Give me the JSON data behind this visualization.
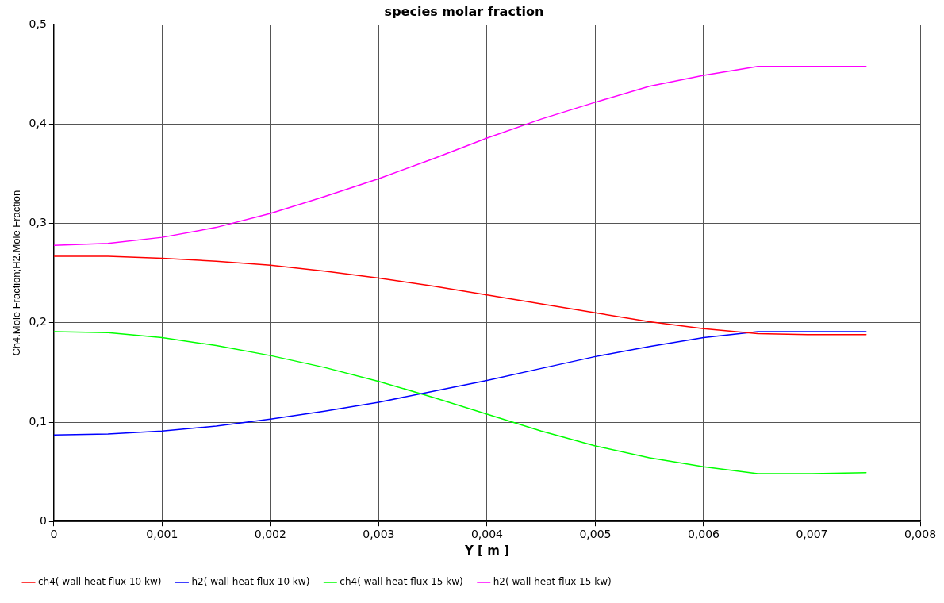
{
  "chart_data": {
    "type": "line",
    "title": "species molar fraction",
    "xlabel": "Y [ m ]",
    "ylabel": "Ch4.Mole Fraction;H2.Mole Fraction",
    "x": [
      0,
      0.0005,
      0.001,
      0.0015,
      0.002,
      0.0025,
      0.003,
      0.0035,
      0.004,
      0.0045,
      0.005,
      0.0055,
      0.006,
      0.0065,
      0.007,
      0.0075
    ],
    "series": [
      {
        "name": "ch4( wall heat flux 10 kw)",
        "color": "#ff0000",
        "values": [
          0.267,
          0.267,
          0.265,
          0.262,
          0.258,
          0.252,
          0.245,
          0.237,
          0.228,
          0.219,
          0.21,
          0.201,
          0.194,
          0.189,
          0.188,
          0.188
        ]
      },
      {
        "name": "h2( wall heat flux 10 kw)",
        "color": "#0000ff",
        "values": [
          0.087,
          0.088,
          0.091,
          0.096,
          0.103,
          0.111,
          0.12,
          0.131,
          0.142,
          0.154,
          0.166,
          0.176,
          0.185,
          0.191,
          0.191,
          0.191
        ]
      },
      {
        "name": "ch4( wall heat flux 15 kw)",
        "color": "#00ff00",
        "values": [
          0.191,
          0.19,
          0.185,
          0.177,
          0.167,
          0.155,
          0.141,
          0.125,
          0.108,
          0.091,
          0.076,
          0.064,
          0.055,
          0.048,
          0.048,
          0.049
        ]
      },
      {
        "name": "h2( wall heat flux 15 kw)",
        "color": "#ff00ff",
        "values": [
          0.278,
          0.28,
          0.286,
          0.296,
          0.31,
          0.327,
          0.345,
          0.365,
          0.386,
          0.405,
          0.422,
          0.438,
          0.449,
          0.458,
          0.458,
          0.458
        ]
      }
    ],
    "xlim": [
      0,
      0.008
    ],
    "xticks": [
      0,
      {
        "value": 0.001,
        "label": "0,001"
      },
      {
        "value": 0.002,
        "label": "0,002"
      },
      {
        "value": 0.003,
        "label": "0,003"
      },
      {
        "value": 0.004,
        "label": "0,004"
      },
      {
        "value": 0.005,
        "label": "0,005"
      },
      {
        "value": 0.006,
        "label": "0,006"
      },
      {
        "value": 0.007,
        "label": "0,007"
      },
      {
        "value": 0.008,
        "label": "0,008"
      }
    ],
    "ylim": [
      0,
      0.5
    ],
    "yticks": [
      0,
      {
        "value": 0.1,
        "label": "0,1"
      },
      {
        "value": 0.2,
        "label": "0,2"
      },
      {
        "value": 0.3,
        "label": "0,3"
      },
      {
        "value": 0.4,
        "label": "0,4"
      },
      {
        "value": 0.5,
        "label": "0,5"
      }
    ],
    "grid": true,
    "legend": "bottom",
    "marker": "none",
    "line_style": "solid"
  }
}
